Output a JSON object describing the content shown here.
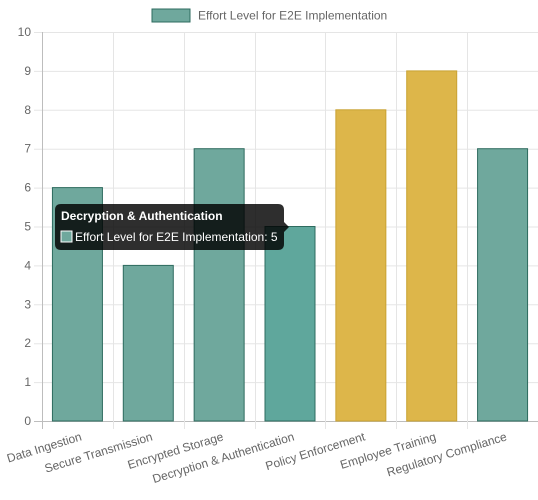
{
  "chart_data": {
    "type": "bar",
    "categories": [
      "Data Ingestion",
      "Secure Transmission",
      "Encrypted Storage",
      "Decryption & Authentication",
      "Policy Enforcement",
      "Employee Training",
      "Regulatory Compliance"
    ],
    "series": [
      {
        "name": "Effort Level for E2E Implementation",
        "values": [
          6,
          4,
          7,
          5,
          8,
          9,
          7
        ]
      }
    ],
    "ylim": [
      0,
      10
    ],
    "yticks": [
      0,
      1,
      2,
      3,
      4,
      5,
      6,
      7,
      8,
      9,
      10
    ],
    "grid": true,
    "legend_position": "top",
    "colors": {
      "default_fill": "#6fa89d",
      "default_stroke": "#2e6b5f",
      "highlight_fill": "#ddb64a",
      "highlight_stroke": "#c9a233",
      "hover_fill": "#5fa79c"
    },
    "highlighted_categories": [
      "Policy Enforcement",
      "Employee Training"
    ],
    "hovered_category": "Decryption & Authentication",
    "tooltip": {
      "title": "Decryption & Authentication",
      "label": "Effort Level for E2E Implementation: 5"
    }
  }
}
